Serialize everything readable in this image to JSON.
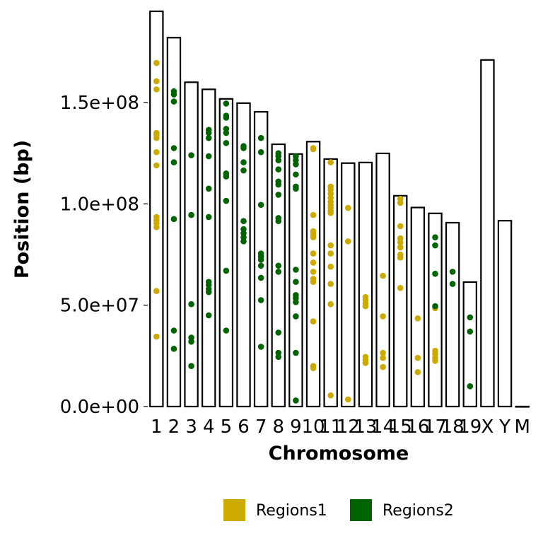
{
  "chart_data": {
    "type": "scatter",
    "xlabel": "Chromosome",
    "ylabel": "Position (bp)",
    "ylim": [
      0,
      195000000
    ],
    "y_ticks": [
      {
        "value": 0,
        "label": "0.0e+00"
      },
      {
        "value": 50000000,
        "label": "5.0e+07"
      },
      {
        "value": 100000000,
        "label": "1.0e+08"
      },
      {
        "value": 150000000,
        "label": "1.5e+08"
      }
    ],
    "chromosomes": [
      {
        "name": "1",
        "length": 195000000
      },
      {
        "name": "2",
        "length": 182000000
      },
      {
        "name": "3",
        "length": 160000000
      },
      {
        "name": "4",
        "length": 156500000
      },
      {
        "name": "5",
        "length": 151800000
      },
      {
        "name": "6",
        "length": 149700000
      },
      {
        "name": "7",
        "length": 145400000
      },
      {
        "name": "8",
        "length": 129400000
      },
      {
        "name": "9",
        "length": 124600000
      },
      {
        "name": "10",
        "length": 130700000
      },
      {
        "name": "11",
        "length": 122100000
      },
      {
        "name": "12",
        "length": 120100000
      },
      {
        "name": "13",
        "length": 120400000
      },
      {
        "name": "14",
        "length": 124900000
      },
      {
        "name": "15",
        "length": 104000000
      },
      {
        "name": "16",
        "length": 98200000
      },
      {
        "name": "17",
        "length": 95300000
      },
      {
        "name": "18",
        "length": 90700000
      },
      {
        "name": "19",
        "length": 61400000
      },
      {
        "name": "X",
        "length": 171000000
      },
      {
        "name": "Y",
        "length": 91700000
      },
      {
        "name": "M",
        "length": 16299
      }
    ],
    "legend": {
      "position": "bottom",
      "items": [
        {
          "name": "Regions1",
          "color": "#CDAA00"
        },
        {
          "name": "Regions2",
          "color": "#006400"
        }
      ]
    },
    "series": [
      {
        "name": "Regions1",
        "color": "#CDAA00",
        "points": [
          {
            "chr": "1",
            "pos": 34500000
          },
          {
            "chr": "1",
            "pos": 57000000
          },
          {
            "chr": "1",
            "pos": 88500000
          },
          {
            "chr": "1",
            "pos": 90500000
          },
          {
            "chr": "1",
            "pos": 92000000
          },
          {
            "chr": "1",
            "pos": 93500000
          },
          {
            "chr": "1",
            "pos": 119000000
          },
          {
            "chr": "1",
            "pos": 125500000
          },
          {
            "chr": "1",
            "pos": 132500000
          },
          {
            "chr": "1",
            "pos": 134000000
          },
          {
            "chr": "1",
            "pos": 135000000
          },
          {
            "chr": "1",
            "pos": 156500000
          },
          {
            "chr": "1",
            "pos": 160500000
          },
          {
            "chr": "1",
            "pos": 169500000
          },
          {
            "chr": "10",
            "pos": 19000000
          },
          {
            "chr": "10",
            "pos": 20000000
          },
          {
            "chr": "10",
            "pos": 42000000
          },
          {
            "chr": "10",
            "pos": 61500000
          },
          {
            "chr": "10",
            "pos": 63000000
          },
          {
            "chr": "10",
            "pos": 66500000
          },
          {
            "chr": "10",
            "pos": 71000000
          },
          {
            "chr": "10",
            "pos": 75500000
          },
          {
            "chr": "10",
            "pos": 83500000
          },
          {
            "chr": "10",
            "pos": 84500000
          },
          {
            "chr": "10",
            "pos": 85500000
          },
          {
            "chr": "10",
            "pos": 86500000
          },
          {
            "chr": "10",
            "pos": 94500000
          },
          {
            "chr": "10",
            "pos": 127000000
          },
          {
            "chr": "10",
            "pos": 127500000
          },
          {
            "chr": "11",
            "pos": 5500000
          },
          {
            "chr": "11",
            "pos": 50500000
          },
          {
            "chr": "11",
            "pos": 60500000
          },
          {
            "chr": "11",
            "pos": 69000000
          },
          {
            "chr": "11",
            "pos": 75500000
          },
          {
            "chr": "11",
            "pos": 79500000
          },
          {
            "chr": "11",
            "pos": 95500000
          },
          {
            "chr": "11",
            "pos": 96500000
          },
          {
            "chr": "11",
            "pos": 98000000
          },
          {
            "chr": "11",
            "pos": 99500000
          },
          {
            "chr": "11",
            "pos": 101000000
          },
          {
            "chr": "11",
            "pos": 103000000
          },
          {
            "chr": "11",
            "pos": 105000000
          },
          {
            "chr": "11",
            "pos": 107000000
          },
          {
            "chr": "11",
            "pos": 108500000
          },
          {
            "chr": "11",
            "pos": 120500000
          },
          {
            "chr": "12",
            "pos": 3500000
          },
          {
            "chr": "12",
            "pos": 81500000
          },
          {
            "chr": "12",
            "pos": 98000000
          },
          {
            "chr": "13",
            "pos": 21500000
          },
          {
            "chr": "13",
            "pos": 23000000
          },
          {
            "chr": "13",
            "pos": 24500000
          },
          {
            "chr": "13",
            "pos": 49500000
          },
          {
            "chr": "13",
            "pos": 51000000
          },
          {
            "chr": "13",
            "pos": 52500000
          },
          {
            "chr": "13",
            "pos": 54000000
          },
          {
            "chr": "14",
            "pos": 19500000
          },
          {
            "chr": "14",
            "pos": 24000000
          },
          {
            "chr": "14",
            "pos": 26500000
          },
          {
            "chr": "14",
            "pos": 44500000
          },
          {
            "chr": "14",
            "pos": 64500000
          },
          {
            "chr": "15",
            "pos": 58500000
          },
          {
            "chr": "15",
            "pos": 73500000
          },
          {
            "chr": "15",
            "pos": 75000000
          },
          {
            "chr": "15",
            "pos": 78500000
          },
          {
            "chr": "15",
            "pos": 81000000
          },
          {
            "chr": "15",
            "pos": 83000000
          },
          {
            "chr": "15",
            "pos": 89000000
          },
          {
            "chr": "15",
            "pos": 100500000
          },
          {
            "chr": "15",
            "pos": 102500000
          },
          {
            "chr": "16",
            "pos": 17000000
          },
          {
            "chr": "16",
            "pos": 24000000
          },
          {
            "chr": "16",
            "pos": 43500000
          },
          {
            "chr": "17",
            "pos": 22500000
          },
          {
            "chr": "17",
            "pos": 24000000
          },
          {
            "chr": "17",
            "pos": 26000000
          },
          {
            "chr": "17",
            "pos": 27500000
          },
          {
            "chr": "17",
            "pos": 48500000
          }
        ]
      },
      {
        "name": "Regions2",
        "color": "#006400",
        "points": [
          {
            "chr": "2",
            "pos": 28500000
          },
          {
            "chr": "2",
            "pos": 37500000
          },
          {
            "chr": "2",
            "pos": 92500000
          },
          {
            "chr": "2",
            "pos": 120500000
          },
          {
            "chr": "2",
            "pos": 127500000
          },
          {
            "chr": "2",
            "pos": 150500000
          },
          {
            "chr": "2",
            "pos": 154000000
          },
          {
            "chr": "2",
            "pos": 155500000
          },
          {
            "chr": "3",
            "pos": 20000000
          },
          {
            "chr": "3",
            "pos": 32000000
          },
          {
            "chr": "3",
            "pos": 34000000
          },
          {
            "chr": "3",
            "pos": 50500000
          },
          {
            "chr": "3",
            "pos": 94500000
          },
          {
            "chr": "3",
            "pos": 124000000
          },
          {
            "chr": "4",
            "pos": 45000000
          },
          {
            "chr": "4",
            "pos": 56500000
          },
          {
            "chr": "4",
            "pos": 58000000
          },
          {
            "chr": "4",
            "pos": 60000000
          },
          {
            "chr": "4",
            "pos": 61500000
          },
          {
            "chr": "4",
            "pos": 93500000
          },
          {
            "chr": "4",
            "pos": 107500000
          },
          {
            "chr": "4",
            "pos": 123500000
          },
          {
            "chr": "4",
            "pos": 132500000
          },
          {
            "chr": "4",
            "pos": 135000000
          },
          {
            "chr": "4",
            "pos": 136500000
          },
          {
            "chr": "5",
            "pos": 37500000
          },
          {
            "chr": "5",
            "pos": 67000000
          },
          {
            "chr": "5",
            "pos": 101500000
          },
          {
            "chr": "5",
            "pos": 113500000
          },
          {
            "chr": "5",
            "pos": 115000000
          },
          {
            "chr": "5",
            "pos": 130000000
          },
          {
            "chr": "5",
            "pos": 135000000
          },
          {
            "chr": "5",
            "pos": 137000000
          },
          {
            "chr": "5",
            "pos": 142500000
          },
          {
            "chr": "5",
            "pos": 143500000
          },
          {
            "chr": "5",
            "pos": 149500000
          },
          {
            "chr": "6",
            "pos": 81500000
          },
          {
            "chr": "6",
            "pos": 83500000
          },
          {
            "chr": "6",
            "pos": 85500000
          },
          {
            "chr": "6",
            "pos": 87500000
          },
          {
            "chr": "6",
            "pos": 91500000
          },
          {
            "chr": "6",
            "pos": 116500000
          },
          {
            "chr": "6",
            "pos": 120500000
          },
          {
            "chr": "6",
            "pos": 127500000
          },
          {
            "chr": "6",
            "pos": 128500000
          },
          {
            "chr": "7",
            "pos": 29500000
          },
          {
            "chr": "7",
            "pos": 52500000
          },
          {
            "chr": "7",
            "pos": 63500000
          },
          {
            "chr": "7",
            "pos": 69500000
          },
          {
            "chr": "7",
            "pos": 72500000
          },
          {
            "chr": "7",
            "pos": 74000000
          },
          {
            "chr": "7",
            "pos": 75500000
          },
          {
            "chr": "7",
            "pos": 99500000
          },
          {
            "chr": "7",
            "pos": 125500000
          },
          {
            "chr": "7",
            "pos": 132500000
          },
          {
            "chr": "8",
            "pos": 24500000
          },
          {
            "chr": "8",
            "pos": 26500000
          },
          {
            "chr": "8",
            "pos": 36500000
          },
          {
            "chr": "8",
            "pos": 66500000
          },
          {
            "chr": "8",
            "pos": 69500000
          },
          {
            "chr": "8",
            "pos": 91500000
          },
          {
            "chr": "8",
            "pos": 93000000
          },
          {
            "chr": "8",
            "pos": 104500000
          },
          {
            "chr": "8",
            "pos": 109500000
          },
          {
            "chr": "8",
            "pos": 111000000
          },
          {
            "chr": "8",
            "pos": 117000000
          },
          {
            "chr": "8",
            "pos": 121500000
          },
          {
            "chr": "8",
            "pos": 123500000
          },
          {
            "chr": "8",
            "pos": 125000000
          },
          {
            "chr": "9",
            "pos": 3000000
          },
          {
            "chr": "9",
            "pos": 26500000
          },
          {
            "chr": "9",
            "pos": 44500000
          },
          {
            "chr": "9",
            "pos": 51500000
          },
          {
            "chr": "9",
            "pos": 53500000
          },
          {
            "chr": "9",
            "pos": 55000000
          },
          {
            "chr": "9",
            "pos": 61500000
          },
          {
            "chr": "9",
            "pos": 67500000
          },
          {
            "chr": "9",
            "pos": 107500000
          },
          {
            "chr": "9",
            "pos": 108500000
          },
          {
            "chr": "9",
            "pos": 114500000
          },
          {
            "chr": "9",
            "pos": 119500000
          },
          {
            "chr": "9",
            "pos": 121500000
          },
          {
            "chr": "9",
            "pos": 123500000
          },
          {
            "chr": "17",
            "pos": 49500000
          },
          {
            "chr": "17",
            "pos": 65500000
          },
          {
            "chr": "17",
            "pos": 79500000
          },
          {
            "chr": "17",
            "pos": 83500000
          },
          {
            "chr": "18",
            "pos": 60500000
          },
          {
            "chr": "18",
            "pos": 66500000
          },
          {
            "chr": "19",
            "pos": 10000000
          },
          {
            "chr": "19",
            "pos": 37000000
          },
          {
            "chr": "19",
            "pos": 44000000
          }
        ]
      }
    ]
  }
}
